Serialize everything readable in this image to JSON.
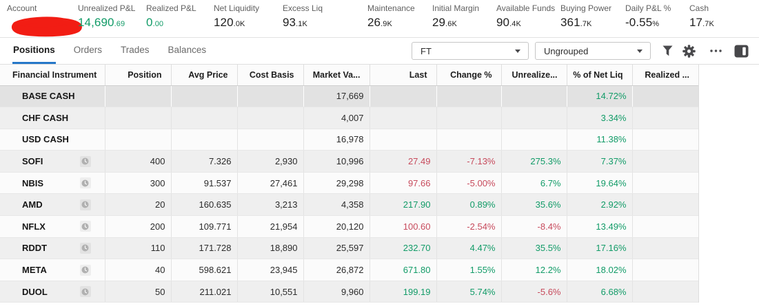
{
  "colors": {
    "green": "#119b67",
    "red": "#c74a5c",
    "accent_blue": "#2577c8",
    "redaction_red": "#f21d14"
  },
  "account_summary": [
    {
      "label": "Account",
      "redacted": true
    },
    {
      "label": "Unrealized P&L",
      "main": "14,690",
      "suffix": ".69",
      "tone": "green"
    },
    {
      "label": "Realized P&L",
      "main": "0",
      "suffix": ".00",
      "tone": "green"
    },
    {
      "label": "Net Liquidity",
      "main": "120",
      "suffix": ".0K",
      "tone": "dark"
    },
    {
      "label": "Excess Liq",
      "main": "93",
      "suffix": ".1K",
      "tone": "dark"
    },
    {
      "label": "Maintenance",
      "main": "26",
      "suffix": ".9K",
      "tone": "dark"
    },
    {
      "label": "Initial Margin",
      "main": "29",
      "suffix": ".6K",
      "tone": "dark"
    },
    {
      "label": "Available Funds",
      "main": "90",
      "suffix": ".4K",
      "tone": "dark"
    },
    {
      "label": "Buying Power",
      "main": "361",
      "suffix": ".7K",
      "tone": "dark"
    },
    {
      "label": "Daily P&L %",
      "main": "-0.55",
      "suffix": "%",
      "tone": "dark"
    },
    {
      "label": "Cash",
      "main": "17",
      "suffix": ".7K",
      "tone": "dark"
    }
  ],
  "toolbar": {
    "tabs": [
      {
        "label": "Positions",
        "active": true
      },
      {
        "label": "Orders",
        "active": false
      },
      {
        "label": "Trades",
        "active": false
      },
      {
        "label": "Balances",
        "active": false
      }
    ],
    "view_dropdown": {
      "value": "FT"
    },
    "group_dropdown": {
      "value": "Ungrouped"
    },
    "icons": [
      "filter-icon",
      "gear-icon",
      "more-icon",
      "panel-toggle-icon"
    ]
  },
  "positions": {
    "columns": [
      "Financial Instrument",
      "Position",
      "Avg Price",
      "Cost Basis",
      "Market Va...",
      "Last",
      "Change %",
      "Unrealize...",
      "% of Net Liq",
      "Realized ..."
    ],
    "rows": [
      {
        "instrument": "BASE CASH",
        "icon": false,
        "selected": true,
        "position": "",
        "avg_price": "",
        "cost_basis": "",
        "market_value": "17,669",
        "last": "",
        "last_tone": "dark",
        "change_pct": "",
        "change_tone": "dark",
        "unrealized_pct": "",
        "unrealized_tone": "dark",
        "pct_net_liq": "14.72%",
        "pct_net_liq_tone": "green",
        "realized": ""
      },
      {
        "instrument": "CHF CASH",
        "icon": false,
        "selected": false,
        "position": "",
        "avg_price": "",
        "cost_basis": "",
        "market_value": "4,007",
        "last": "",
        "last_tone": "dark",
        "change_pct": "",
        "change_tone": "dark",
        "unrealized_pct": "",
        "unrealized_tone": "dark",
        "pct_net_liq": "3.34%",
        "pct_net_liq_tone": "green",
        "realized": ""
      },
      {
        "instrument": "USD CASH",
        "icon": false,
        "selected": false,
        "position": "",
        "avg_price": "",
        "cost_basis": "",
        "market_value": "16,978",
        "last": "",
        "last_tone": "dark",
        "change_pct": "",
        "change_tone": "dark",
        "unrealized_pct": "",
        "unrealized_tone": "dark",
        "pct_net_liq": "11.38%",
        "pct_net_liq_tone": "green",
        "realized": ""
      },
      {
        "instrument": "SOFI",
        "icon": true,
        "selected": false,
        "position": "400",
        "avg_price": "7.326",
        "cost_basis": "2,930",
        "market_value": "10,996",
        "last": "27.49",
        "last_tone": "red",
        "change_pct": "-7.13%",
        "change_tone": "red",
        "unrealized_pct": "275.3%",
        "unrealized_tone": "green",
        "pct_net_liq": "7.37%",
        "pct_net_liq_tone": "green",
        "realized": ""
      },
      {
        "instrument": "NBIS",
        "icon": true,
        "selected": false,
        "position": "300",
        "avg_price": "91.537",
        "cost_basis": "27,461",
        "market_value": "29,298",
        "last": "97.66",
        "last_tone": "red",
        "change_pct": "-5.00%",
        "change_tone": "red",
        "unrealized_pct": "6.7%",
        "unrealized_tone": "green",
        "pct_net_liq": "19.64%",
        "pct_net_liq_tone": "green",
        "realized": ""
      },
      {
        "instrument": "AMD",
        "icon": true,
        "selected": false,
        "position": "20",
        "avg_price": "160.635",
        "cost_basis": "3,213",
        "market_value": "4,358",
        "last": "217.90",
        "last_tone": "green",
        "change_pct": "0.89%",
        "change_tone": "green",
        "unrealized_pct": "35.6%",
        "unrealized_tone": "green",
        "pct_net_liq": "2.92%",
        "pct_net_liq_tone": "green",
        "realized": ""
      },
      {
        "instrument": "NFLX",
        "icon": true,
        "selected": false,
        "position": "200",
        "avg_price": "109.771",
        "cost_basis": "21,954",
        "market_value": "20,120",
        "last": "100.60",
        "last_tone": "red",
        "change_pct": "-2.54%",
        "change_tone": "red",
        "unrealized_pct": "-8.4%",
        "unrealized_tone": "red",
        "pct_net_liq": "13.49%",
        "pct_net_liq_tone": "green",
        "realized": ""
      },
      {
        "instrument": "RDDT",
        "icon": true,
        "selected": false,
        "position": "110",
        "avg_price": "171.728",
        "cost_basis": "18,890",
        "market_value": "25,597",
        "last": "232.70",
        "last_tone": "green",
        "change_pct": "4.47%",
        "change_tone": "green",
        "unrealized_pct": "35.5%",
        "unrealized_tone": "green",
        "pct_net_liq": "17.16%",
        "pct_net_liq_tone": "green",
        "realized": ""
      },
      {
        "instrument": "META",
        "icon": true,
        "selected": false,
        "position": "40",
        "avg_price": "598.621",
        "cost_basis": "23,945",
        "market_value": "26,872",
        "last": "671.80",
        "last_tone": "green",
        "change_pct": "1.55%",
        "change_tone": "green",
        "unrealized_pct": "12.2%",
        "unrealized_tone": "green",
        "pct_net_liq": "18.02%",
        "pct_net_liq_tone": "green",
        "realized": ""
      },
      {
        "instrument": "DUOL",
        "icon": true,
        "selected": false,
        "position": "50",
        "avg_price": "211.021",
        "cost_basis": "10,551",
        "market_value": "9,960",
        "last": "199.19",
        "last_tone": "green",
        "change_pct": "5.74%",
        "change_tone": "green",
        "unrealized_pct": "-5.6%",
        "unrealized_tone": "red",
        "pct_net_liq": "6.68%",
        "pct_net_liq_tone": "green",
        "realized": ""
      }
    ]
  }
}
